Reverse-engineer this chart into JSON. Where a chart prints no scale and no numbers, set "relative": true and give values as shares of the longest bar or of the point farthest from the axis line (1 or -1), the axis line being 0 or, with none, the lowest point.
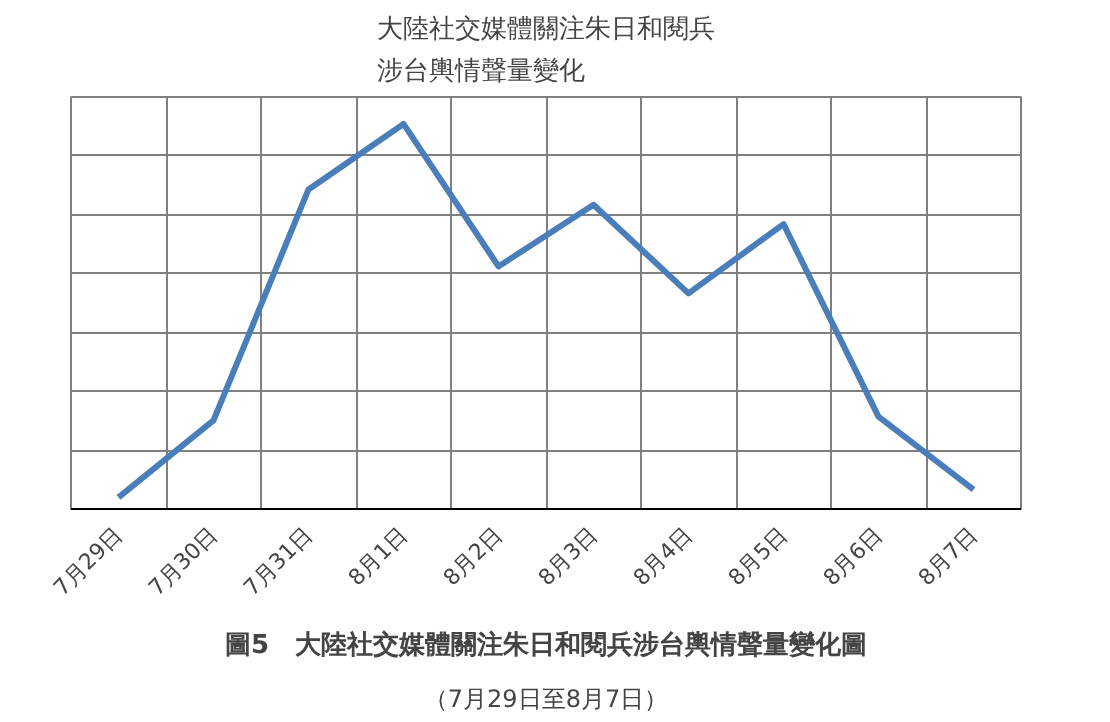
{
  "chart_data": {
    "type": "line",
    "title": "大陸社交媒體關注朱日和閱兵涉台輿情聲量變化",
    "categories": [
      "7月29日",
      "7月30日",
      "7月31日",
      "8月1日",
      "8月2日",
      "8月3日",
      "8月4日",
      "8月5日",
      "8月6日",
      "8月7日"
    ],
    "relative": true,
    "series": [
      {
        "color": "#4a7ebb",
        "values": [
          0.03,
          0.23,
          0.83,
          1,
          0.63,
          0.79,
          0.56,
          0.74,
          0.24,
          0.05
        ]
      }
    ],
    "grid": true,
    "marker": "none",
    "line_style": "solid",
    "annotations": [
      "圖5　大陸社交媒體關注朱日和閱兵涉台輿情聲量變化圖",
      "（7月29日至8月7日）"
    ]
  }
}
